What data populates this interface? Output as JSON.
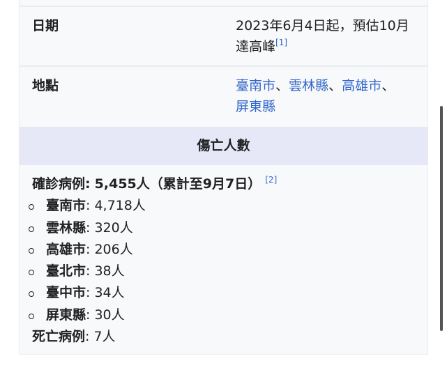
{
  "date": {
    "label": "日期",
    "value": "2023年6月4日起，預估10月達高峰",
    "ref": "[1]"
  },
  "location": {
    "label": "地點",
    "places": [
      "臺南市",
      "雲林縣",
      "高雄市",
      "屏東縣"
    ],
    "separator": "、"
  },
  "casualties": {
    "header": "傷亡人數",
    "confirmed_label": "確診病例:",
    "confirmed_value": "5,455人（累計至9月7日）",
    "ref": "[2]",
    "breakdown": [
      {
        "place": "臺南市",
        "count": "4,718人"
      },
      {
        "place": "雲林縣",
        "count": "320人"
      },
      {
        "place": "高雄市",
        "count": "206人"
      },
      {
        "place": "臺北市",
        "count": "38人"
      },
      {
        "place": "臺中市",
        "count": "34人"
      },
      {
        "place": "屏東縣",
        "count": "30人"
      }
    ],
    "deaths_label": "死亡病例",
    "deaths_value": "7人"
  },
  "colors": {
    "link": "#3366cc",
    "header_bg": "#e6e7f7",
    "box_bg": "#f8f9fa"
  }
}
